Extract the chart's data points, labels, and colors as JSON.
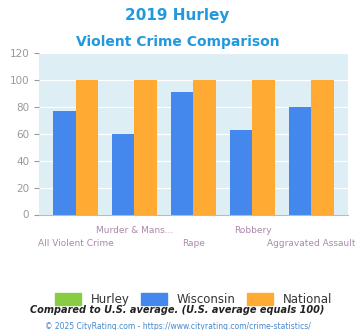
{
  "title_line1": "2019 Hurley",
  "title_line2": "Violent Crime Comparison",
  "categories": [
    "All Violent Crime",
    "Murder & Mans...",
    "Rape",
    "Robbery",
    "Aggravated Assault"
  ],
  "hurley_values": [
    0,
    0,
    0,
    0,
    0
  ],
  "wisconsin_values": [
    77,
    60,
    91,
    63,
    80
  ],
  "national_values": [
    100,
    100,
    100,
    100,
    100
  ],
  "hurley_color": "#88cc44",
  "wisconsin_color": "#4488ee",
  "national_color": "#ffaa33",
  "plot_bg_color": "#ddeef5",
  "title_color": "#2299dd",
  "ylim": [
    0,
    120
  ],
  "yticks": [
    0,
    20,
    40,
    60,
    80,
    100,
    120
  ],
  "legend_labels": [
    "Hurley",
    "Wisconsin",
    "National"
  ],
  "footnote1": "Compared to U.S. average. (U.S. average equals 100)",
  "footnote2": "© 2025 CityRating.com - https://www.cityrating.com/crime-statistics/",
  "footnote1_color": "#222222",
  "footnote2_color": "#4488cc",
  "cat_label_color": "#aa88aa",
  "tick_color": "#999999",
  "grid_color": "#ffffff",
  "bar_width": 0.38
}
